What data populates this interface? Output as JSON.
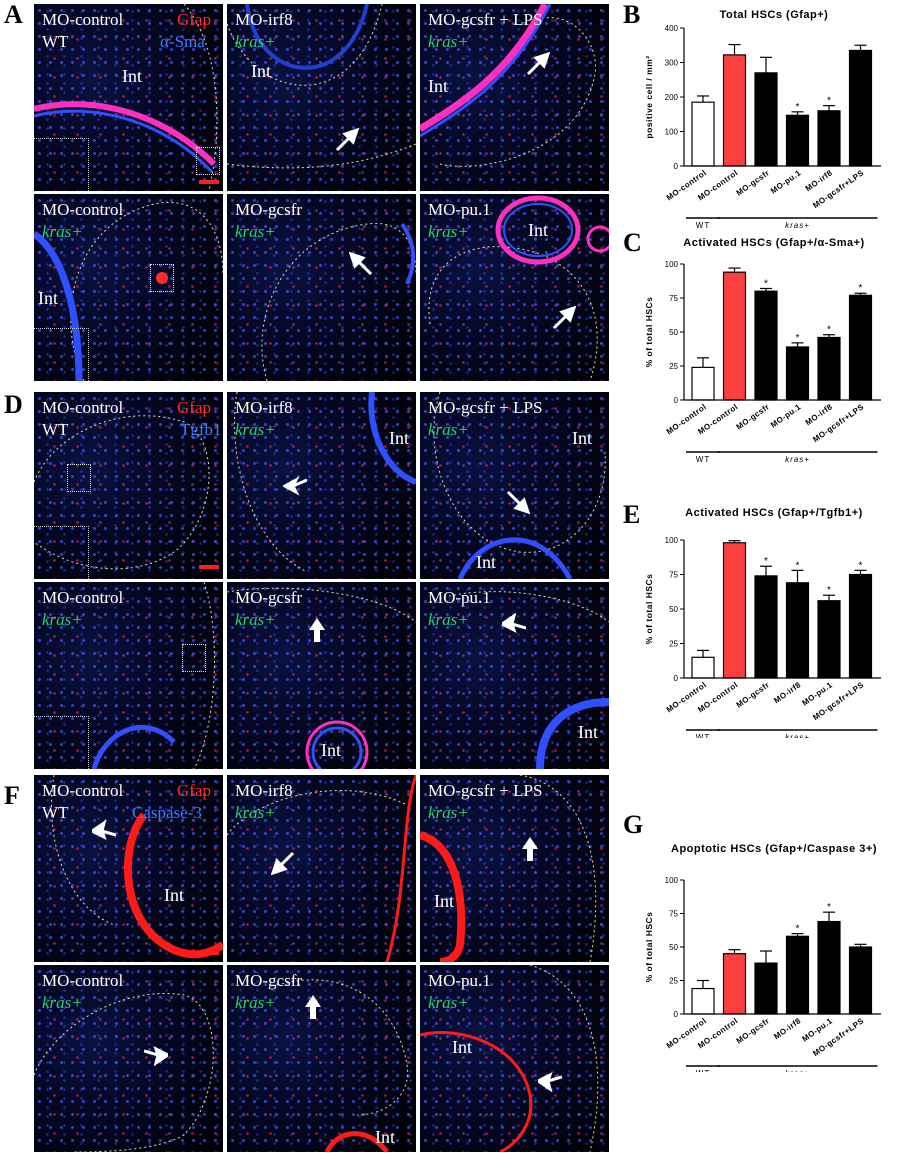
{
  "panel_labels": {
    "A": "A",
    "B": "B",
    "C": "C",
    "D": "D",
    "E": "E",
    "F": "F",
    "G": "G"
  },
  "common": {
    "int": "Int",
    "kras": "kras+",
    "wt": "WT",
    "gfap": "Gfap"
  },
  "panels": {
    "A": {
      "marker2": "α-Sma",
      "cells": [
        "MO-control",
        "MO-irf8",
        "MO-gcsfr + LPS",
        "MO-control",
        "MO-gcsfr",
        "MO-pu.1"
      ]
    },
    "D": {
      "marker2": "Tgfb1",
      "cells": [
        "MO-control",
        "MO-irf8",
        "MO-gcsfr + LPS",
        "MO-control",
        "MO-gcsfr",
        "MO-pu.1"
      ]
    },
    "F": {
      "marker2": "Caspase-3",
      "cells": [
        "MO-control",
        "MO-irf8",
        "MO-gcsfr + LPS",
        "MO-control",
        "MO-gcsfr",
        "MO-pu.1"
      ]
    }
  },
  "colors": {
    "red": "#fc4040",
    "black": "#000000",
    "white": "#ffffff",
    "green": "#27d36f",
    "blue": "#3d7bff"
  },
  "chart_data": [
    {
      "id": "B",
      "type": "bar",
      "title": "Total HSCs (Gfap+)",
      "ylabel": "positive cell / mm²",
      "ylim": [
        0,
        400
      ],
      "yticks": [
        0,
        100,
        200,
        300,
        400
      ],
      "categories": [
        "MO-control",
        "MO-control",
        "MO-gcsfr",
        "MO-pu.1",
        "MO-irf8",
        "MO-gcsfr+LPS"
      ],
      "values": [
        185,
        322,
        270,
        147,
        160,
        335
      ],
      "errors": [
        18,
        30,
        45,
        10,
        15,
        15
      ],
      "significant": [
        false,
        false,
        false,
        true,
        true,
        false
      ],
      "fills": [
        "#ffffff",
        "#fc4040",
        "#000000",
        "#000000",
        "#000000",
        "#000000"
      ],
      "groups": [
        {
          "label": "WT",
          "from": 0,
          "to": 0
        },
        {
          "label": "kras+",
          "from": 1,
          "to": 5
        }
      ]
    },
    {
      "id": "C",
      "type": "bar",
      "title": "Activated HSCs (Gfap+/α-Sma+)",
      "ylabel": "% of total HSCs",
      "ylim": [
        0,
        100
      ],
      "yticks": [
        0,
        25,
        50,
        75,
        100
      ],
      "categories": [
        "MO-control",
        "MO-control",
        "MO-gcsfr",
        "MO-pu.1",
        "MO-irf8",
        "MO-gcsfr+LPS"
      ],
      "values": [
        24,
        94,
        80,
        39,
        46,
        77
      ],
      "errors": [
        7,
        3,
        2,
        3,
        2,
        1.5
      ],
      "significant": [
        false,
        false,
        true,
        true,
        true,
        true
      ],
      "fills": [
        "#ffffff",
        "#fc4040",
        "#000000",
        "#000000",
        "#000000",
        "#000000"
      ],
      "groups": [
        {
          "label": "WT",
          "from": 0,
          "to": 0
        },
        {
          "label": "kras+",
          "from": 1,
          "to": 5
        }
      ]
    },
    {
      "id": "E",
      "type": "bar",
      "title": "Activated HSCs (Gfap+/Tgfb1+)",
      "ylabel": "% of total HSCs",
      "ylim": [
        0,
        100
      ],
      "yticks": [
        0,
        25,
        50,
        75,
        100
      ],
      "categories": [
        "MO-control",
        "MO-control",
        "MO-gcsfr",
        "MO-irf8",
        "MO-pu.1",
        "MO-gcsfr+LPS"
      ],
      "values": [
        15,
        98,
        74,
        69,
        56,
        75
      ],
      "errors": [
        5,
        1.5,
        7,
        9,
        4,
        3
      ],
      "significant": [
        false,
        false,
        true,
        true,
        true,
        true
      ],
      "fills": [
        "#ffffff",
        "#fc4040",
        "#000000",
        "#000000",
        "#000000",
        "#000000"
      ],
      "groups": [
        {
          "label": "WT",
          "from": 0,
          "to": 0
        },
        {
          "label": "kras+",
          "from": 1,
          "to": 5
        }
      ]
    },
    {
      "id": "G",
      "type": "bar",
      "title": "Apoptotic HSCs (Gfap+/Caspase 3+)",
      "ylabel": "% of total HSCs",
      "ylim": [
        0,
        100
      ],
      "yticks": [
        0,
        25,
        50,
        75,
        100
      ],
      "categories": [
        "MO-control",
        "MO-control",
        "MO-gcsfr",
        "MO-irf8",
        "MO-pu.1",
        "MO-gcsfr+LPS"
      ],
      "values": [
        19,
        45,
        38,
        58,
        69,
        50
      ],
      "errors": [
        6,
        3,
        9,
        2,
        7,
        2
      ],
      "significant": [
        false,
        false,
        false,
        true,
        true,
        false
      ],
      "fills": [
        "#ffffff",
        "#fc4040",
        "#000000",
        "#000000",
        "#000000",
        "#000000"
      ],
      "groups": [
        {
          "label": "WT",
          "from": 0,
          "to": 0
        },
        {
          "label": "kras+",
          "from": 1,
          "to": 5
        }
      ]
    }
  ]
}
